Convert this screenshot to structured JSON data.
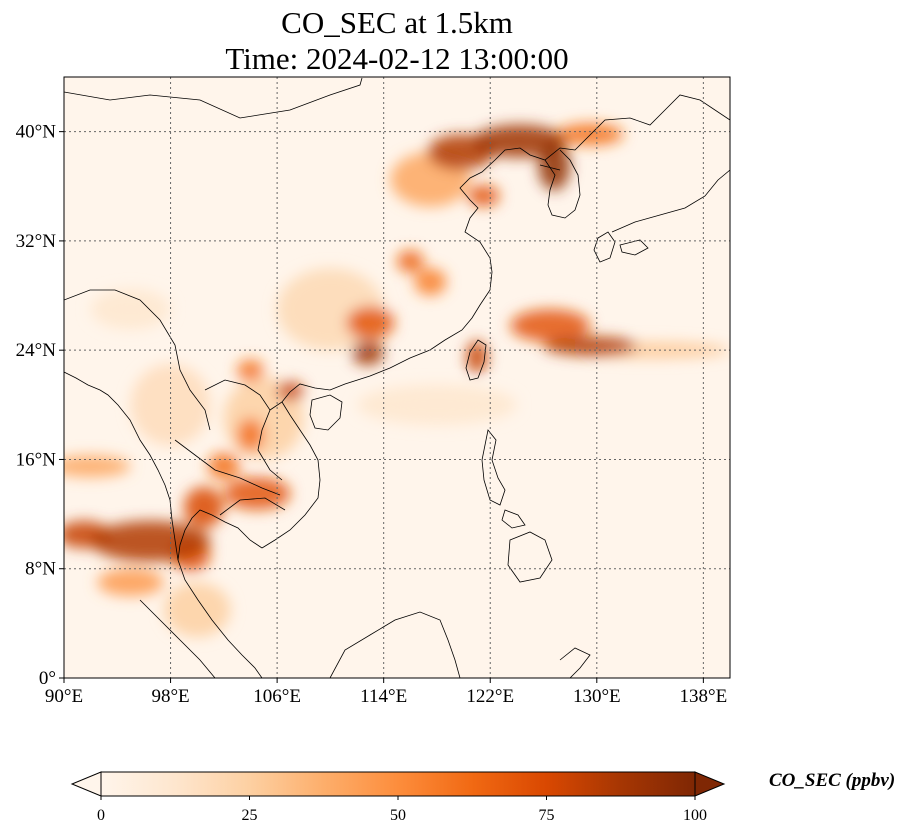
{
  "title": {
    "line1": "CO_SEC at 1.5km",
    "line2": "Time: 2024-02-12 13:00:00"
  },
  "map": {
    "lon_range": [
      90,
      140
    ],
    "lat_range": [
      0,
      44
    ],
    "lon_ticks": [
      {
        "value": 90,
        "label": "90°E"
      },
      {
        "value": 98,
        "label": "98°E"
      },
      {
        "value": 106,
        "label": "106°E"
      },
      {
        "value": 114,
        "label": "114°E"
      },
      {
        "value": 122,
        "label": "122°E"
      },
      {
        "value": 130,
        "label": "130°E"
      },
      {
        "value": 138,
        "label": "138°E"
      }
    ],
    "lat_ticks": [
      {
        "value": 0,
        "label": "0°"
      },
      {
        "value": 8,
        "label": "8°N"
      },
      {
        "value": 16,
        "label": "16°N"
      },
      {
        "value": 24,
        "label": "24°N"
      },
      {
        "value": 32,
        "label": "32°N"
      },
      {
        "value": 40,
        "label": "40°N"
      }
    ],
    "gridlines": true
  },
  "colorbar": {
    "label": "CO_SEC (ppbv)",
    "min": 0,
    "max": 100,
    "extend": "both",
    "colormap": [
      "#fff5eb",
      "#fee6ce",
      "#fdd0a2",
      "#fdae6b",
      "#fd8d3c",
      "#f16913",
      "#d94801",
      "#a63603",
      "#7f2704"
    ],
    "ticks": [
      {
        "value": 0,
        "label": "0"
      },
      {
        "value": 25,
        "label": "25"
      },
      {
        "value": 50,
        "label": "50"
      },
      {
        "value": 75,
        "label": "75"
      },
      {
        "value": 100,
        "label": "100"
      }
    ]
  },
  "plumes": [
    {
      "lon": 124.2,
      "lat": 39.3,
      "rx": 3.5,
      "ry": 1.2,
      "value": 90
    },
    {
      "lon": 119.8,
      "lat": 38.5,
      "rx": 2.5,
      "ry": 1.3,
      "value": 85
    },
    {
      "lon": 126.8,
      "lat": 37.5,
      "rx": 1.2,
      "ry": 1.8,
      "value": 95
    },
    {
      "lon": 129.5,
      "lat": 39.8,
      "rx": 2.5,
      "ry": 0.8,
      "value": 60
    },
    {
      "lon": 121.5,
      "lat": 35.3,
      "rx": 1.2,
      "ry": 0.8,
      "value": 70
    },
    {
      "lon": 117.5,
      "lat": 36.5,
      "rx": 3.0,
      "ry": 2.0,
      "value": 40
    },
    {
      "lon": 116.0,
      "lat": 30.5,
      "rx": 1.0,
      "ry": 0.8,
      "value": 65
    },
    {
      "lon": 117.5,
      "lat": 29.0,
      "rx": 1.2,
      "ry": 1.0,
      "value": 55
    },
    {
      "lon": 113.0,
      "lat": 26.0,
      "rx": 1.8,
      "ry": 1.2,
      "value": 70
    },
    {
      "lon": 112.8,
      "lat": 23.8,
      "rx": 1.2,
      "ry": 0.9,
      "value": 90
    },
    {
      "lon": 126.5,
      "lat": 25.8,
      "rx": 3.0,
      "ry": 1.2,
      "value": 70
    },
    {
      "lon": 129.5,
      "lat": 24.3,
      "rx": 3.5,
      "ry": 0.7,
      "value": 85
    },
    {
      "lon": 134.0,
      "lat": 24.0,
      "rx": 6.0,
      "ry": 0.6,
      "value": 28
    },
    {
      "lon": 121.0,
      "lat": 23.5,
      "rx": 0.8,
      "ry": 1.2,
      "value": 80
    },
    {
      "lon": 107.0,
      "lat": 21.0,
      "rx": 1.0,
      "ry": 0.7,
      "value": 80
    },
    {
      "lon": 104.0,
      "lat": 22.5,
      "rx": 1.0,
      "ry": 0.8,
      "value": 60
    },
    {
      "lon": 104.0,
      "lat": 17.8,
      "rx": 1.0,
      "ry": 1.2,
      "value": 60
    },
    {
      "lon": 102.0,
      "lat": 15.5,
      "rx": 1.2,
      "ry": 1.0,
      "value": 60
    },
    {
      "lon": 104.5,
      "lat": 13.5,
      "rx": 2.5,
      "ry": 1.2,
      "value": 70
    },
    {
      "lon": 100.5,
      "lat": 12.5,
      "rx": 1.5,
      "ry": 1.5,
      "value": 75
    },
    {
      "lon": 96.5,
      "lat": 10.0,
      "rx": 4.5,
      "ry": 1.5,
      "value": 85
    },
    {
      "lon": 91.5,
      "lat": 10.5,
      "rx": 2.0,
      "ry": 1.0,
      "value": 80
    },
    {
      "lon": 92.0,
      "lat": 15.5,
      "rx": 3.0,
      "ry": 0.8,
      "value": 40
    },
    {
      "lon": 99.5,
      "lat": 9.0,
      "rx": 1.5,
      "ry": 1.2,
      "value": 70
    },
    {
      "lon": 95.0,
      "lat": 7.0,
      "rx": 2.5,
      "ry": 1.0,
      "value": 45
    },
    {
      "lon": 100.0,
      "lat": 5.0,
      "rx": 2.5,
      "ry": 2.0,
      "value": 25
    },
    {
      "lon": 110.0,
      "lat": 27.0,
      "rx": 4.0,
      "ry": 3.0,
      "value": 20
    },
    {
      "lon": 105.0,
      "lat": 19.0,
      "rx": 3.0,
      "ry": 3.0,
      "value": 25
    },
    {
      "lon": 98.0,
      "lat": 20.0,
      "rx": 3.0,
      "ry": 3.0,
      "value": 18
    },
    {
      "lon": 118.0,
      "lat": 20.0,
      "rx": 6.0,
      "ry": 1.5,
      "value": 12
    },
    {
      "lon": 95.0,
      "lat": 27.0,
      "rx": 3.0,
      "ry": 1.5,
      "value": 12
    }
  ]
}
